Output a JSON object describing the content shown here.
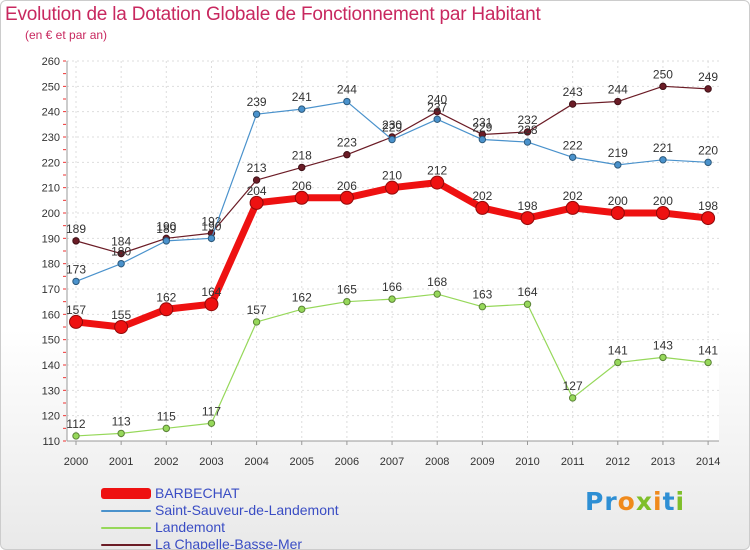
{
  "header": {
    "title": "Evolution de la Dotation Globale de Fonctionnement par Habitant",
    "subtitle": "(en € et par an)"
  },
  "brand": {
    "text": "Proxiti"
  },
  "chart_data": {
    "type": "line",
    "title": "Evolution de la Dotation Globale de Fonctionnement par Habitant",
    "subtitle": "(en € et par an)",
    "xlabel": "",
    "ylabel": "",
    "ylim": [
      110,
      260
    ],
    "y_ticks": [
      110,
      120,
      130,
      140,
      150,
      160,
      170,
      180,
      190,
      200,
      210,
      220,
      230,
      240,
      250,
      260
    ],
    "categories": [
      "2000",
      "2001",
      "2002",
      "2003",
      "2004",
      "2005",
      "2006",
      "2007",
      "2008",
      "2009",
      "2010",
      "2011",
      "2012",
      "2013",
      "2014"
    ],
    "grid": true,
    "legend_position": "bottom-left",
    "series": [
      {
        "name": "La Chapelle-Basse-Mer",
        "color": "#6b1c26",
        "values": [
          189,
          184,
          190,
          192,
          213,
          218,
          223,
          230,
          240,
          231,
          232,
          243,
          244,
          250,
          249
        ]
      },
      {
        "name": "Saint-Sauveur-de-Landemont",
        "color": "#4a92cc",
        "values": [
          173,
          180,
          189,
          190,
          239,
          241,
          244,
          229,
          237,
          229,
          228,
          222,
          219,
          221,
          220
        ]
      },
      {
        "name": "Landemont",
        "color": "#96d85a",
        "values": [
          112,
          113,
          115,
          117,
          157,
          162,
          165,
          166,
          168,
          163,
          164,
          127,
          141,
          143,
          141
        ]
      },
      {
        "name": "BARBECHAT",
        "color": "#ee1111",
        "values": [
          157,
          155,
          162,
          164,
          204,
          206,
          206,
          210,
          212,
          202,
          198,
          202,
          200,
          200,
          198
        ]
      }
    ],
    "legend_order": [
      "BARBECHAT",
      "Saint-Sauveur-de-Landemont",
      "Landemont",
      "La Chapelle-Basse-Mer"
    ]
  }
}
